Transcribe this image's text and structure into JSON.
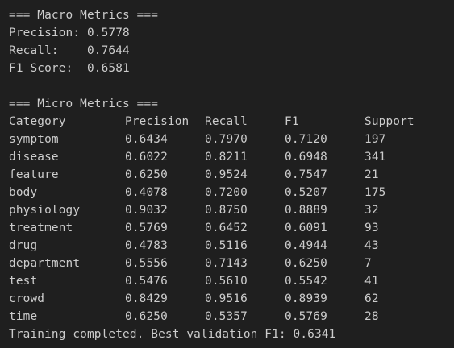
{
  "terminal": {
    "macro_header": "=== Macro Metrics ===",
    "macro": [
      "Precision: 0.5778",
      "Recall:    0.7644",
      "F1 Score:  0.6581"
    ],
    "micro_header": "=== Micro Metrics ===",
    "columns": [
      "Category",
      "Precision",
      "Recall",
      "F1",
      "Support"
    ],
    "rows": [
      [
        "symptom",
        "0.6434",
        "0.7970",
        "0.7120",
        "197"
      ],
      [
        "disease",
        "0.6022",
        "0.8211",
        "0.6948",
        "341"
      ],
      [
        "feature",
        "0.6250",
        "0.9524",
        "0.7547",
        "21"
      ],
      [
        "body",
        "0.4078",
        "0.7200",
        "0.5207",
        "175"
      ],
      [
        "physiology",
        "0.9032",
        "0.8750",
        "0.8889",
        "32"
      ],
      [
        "treatment",
        "0.5769",
        "0.6452",
        "0.6091",
        "93"
      ],
      [
        "drug",
        "0.4783",
        "0.5116",
        "0.4944",
        "43"
      ],
      [
        "department",
        "0.5556",
        "0.7143",
        "0.6250",
        "7"
      ],
      [
        "test",
        "0.5476",
        "0.5610",
        "0.5542",
        "41"
      ],
      [
        "crowd",
        "0.8429",
        "0.9516",
        "0.8939",
        "62"
      ],
      [
        "time",
        "0.6250",
        "0.5357",
        "0.5769",
        "28"
      ]
    ],
    "footer": "Training completed. Best validation F1: 0.6341"
  }
}
